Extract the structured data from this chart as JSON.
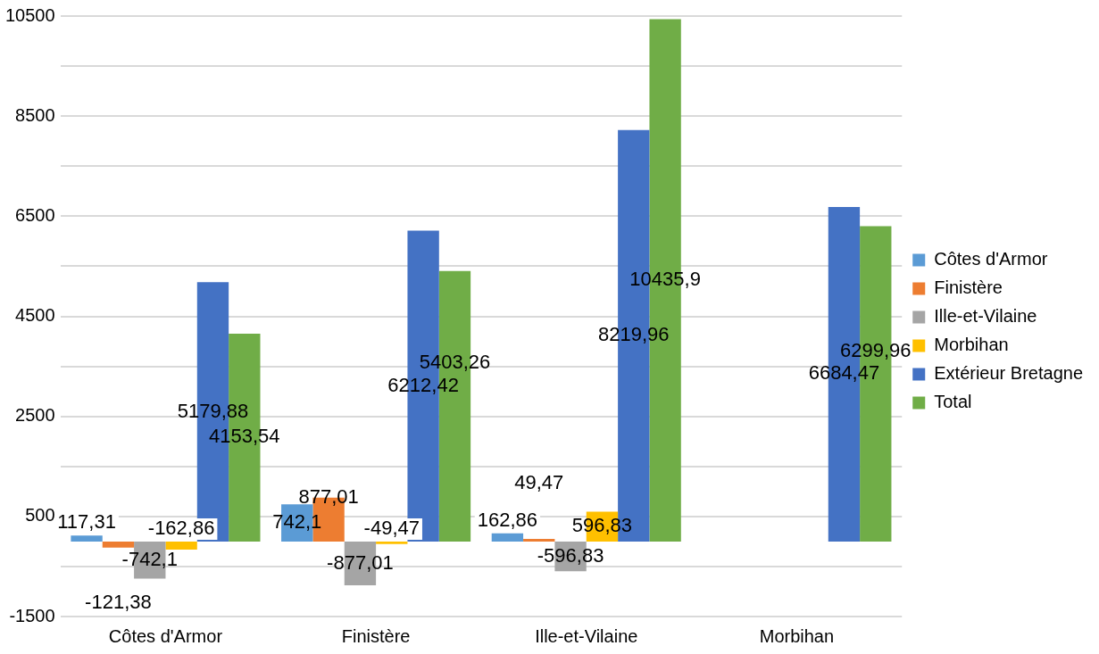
{
  "chart_data": {
    "type": "bar",
    "categories": [
      "Côtes d'Armor",
      "Finistère",
      "Ille-et-Vilaine",
      "Morbihan"
    ],
    "series": [
      {
        "name": "Côtes d'Armor",
        "color": "#5b9bd5",
        "values": [
          117.31,
          742.1,
          162.86,
          null
        ],
        "value_labels": [
          "117,31",
          "742,1",
          "162,86",
          null
        ]
      },
      {
        "name": "Finistère",
        "color": "#ed7d31",
        "values": [
          -121.38,
          877.01,
          49.47,
          null
        ],
        "value_labels": [
          "-121,38",
          "877,01",
          "49,47",
          null
        ]
      },
      {
        "name": "Ille-et-Vilaine",
        "color": "#a5a5a5",
        "values": [
          -742.1,
          -877.01,
          -596.83,
          null
        ],
        "value_labels": [
          "-742,1",
          "-877,01",
          "-596,83",
          null
        ]
      },
      {
        "name": "Morbihan",
        "color": "#ffc000",
        "values": [
          -162.86,
          -49.47,
          596.83,
          null
        ],
        "value_labels": [
          "-162,86",
          "-49,47",
          "596,83",
          null
        ]
      },
      {
        "name": "Extérieur Bretagne",
        "color": "#4472c4",
        "values": [
          5179.88,
          6212.42,
          8219.96,
          6684.47
        ],
        "value_labels": [
          "5179,88",
          "6212,42",
          "8219,96",
          "6684,47"
        ]
      },
      {
        "name": "Total",
        "color": "#70ad47",
        "values": [
          4153.54,
          5403.26,
          10435.9,
          6299.96
        ],
        "value_labels": [
          "4153,54",
          "5403,26",
          "10435,9",
          "6299,96"
        ]
      }
    ],
    "ylim": [
      -1500,
      10500
    ],
    "yticks": [
      -1500,
      {
        "value": -500,
        "label": null
      },
      500,
      {
        "value": 1500,
        "label": null
      },
      2500,
      {
        "value": 3500,
        "label": null
      },
      4500,
      {
        "value": 5500,
        "label": null
      },
      6500,
      {
        "value": 7500,
        "label": null
      },
      8500,
      {
        "value": 9500,
        "label": null
      },
      10500
    ],
    "grid": "y",
    "legend": "right"
  }
}
